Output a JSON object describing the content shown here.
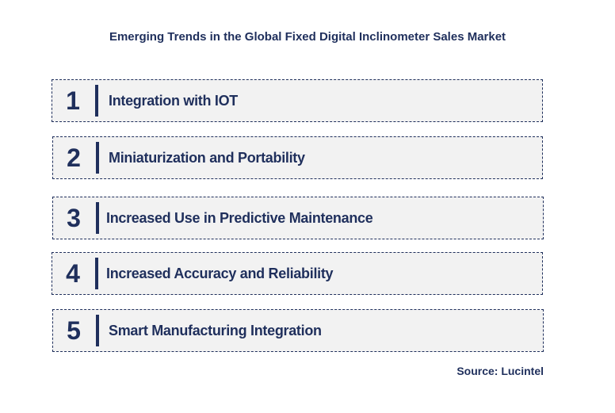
{
  "title": "Emerging Trends in the Global Fixed Digital Inclinometer Sales Market",
  "trends": [
    {
      "number": "1",
      "label": "Integration with IOT"
    },
    {
      "number": "2",
      "label": "Miniaturization and Portability"
    },
    {
      "number": "3",
      "label": "Increased Use in Predictive Maintenance"
    },
    {
      "number": "4",
      "label": "Increased Accuracy and Reliability"
    },
    {
      "number": "5",
      "label": "Smart Manufacturing Integration"
    }
  ],
  "source": "Source: Lucintel",
  "colors": {
    "text": "#1f2f5c",
    "row_background": "#f2f2f2",
    "border": "#1f2f5c"
  }
}
